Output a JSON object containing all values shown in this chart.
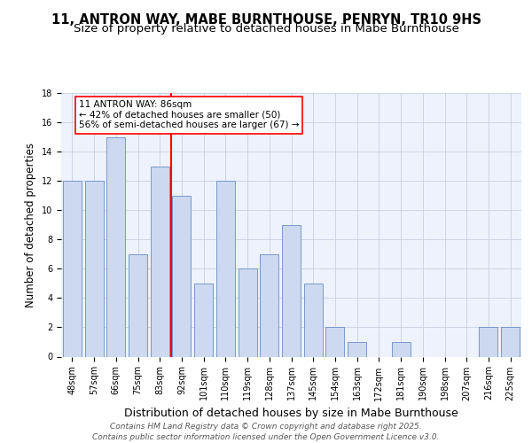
{
  "title1": "11, ANTRON WAY, MABE BURNTHOUSE, PENRYN, TR10 9HS",
  "title2": "Size of property relative to detached houses in Mabe Burnthouse",
  "xlabel": "Distribution of detached houses by size in Mabe Burnthouse",
  "ylabel": "Number of detached properties",
  "categories": [
    "48sqm",
    "57sqm",
    "66sqm",
    "75sqm",
    "83sqm",
    "92sqm",
    "101sqm",
    "110sqm",
    "119sqm",
    "128sqm",
    "137sqm",
    "145sqm",
    "154sqm",
    "163sqm",
    "172sqm",
    "181sqm",
    "190sqm",
    "198sqm",
    "207sqm",
    "216sqm",
    "225sqm"
  ],
  "values": [
    12,
    12,
    15,
    7,
    13,
    11,
    5,
    12,
    6,
    7,
    9,
    5,
    2,
    1,
    0,
    1,
    0,
    0,
    0,
    2,
    2
  ],
  "bar_color": "#ccd9f0",
  "bar_edge_color": "#7799cc",
  "red_line_x": 4.5,
  "annotation_text": "11 ANTRON WAY: 86sqm\n← 42% of detached houses are smaller (50)\n56% of semi-detached houses are larger (67) →",
  "annotation_box_color": "white",
  "annotation_box_edge_color": "red",
  "ylim": [
    0,
    18
  ],
  "yticks": [
    0,
    2,
    4,
    6,
    8,
    10,
    12,
    14,
    16,
    18
  ],
  "footer1": "Contains HM Land Registry data © Crown copyright and database right 2025.",
  "footer2": "Contains public sector information licensed under the Open Government Licence v3.0.",
  "bg_color": "#edf2fc",
  "grid_color": "#c8d0e0",
  "title_fontsize": 10.5,
  "subtitle_fontsize": 9.5,
  "ylabel_fontsize": 8.5,
  "xlabel_fontsize": 9,
  "tick_fontsize": 7,
  "annotation_fontsize": 7.5,
  "footer_fontsize": 6.5
}
